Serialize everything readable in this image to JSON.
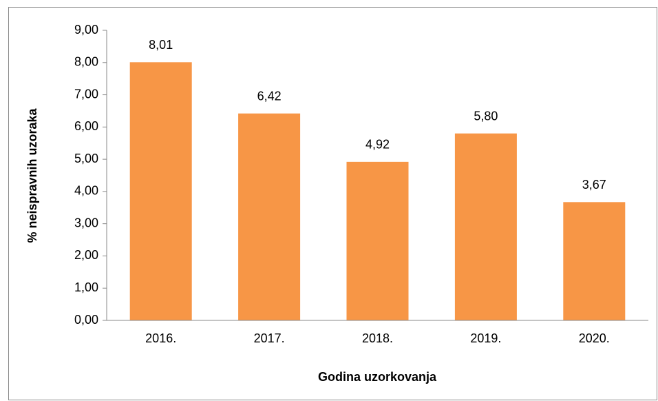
{
  "chart_data": {
    "type": "bar",
    "categories": [
      "2016.",
      "2017.",
      "2018.",
      "2019.",
      "2020."
    ],
    "values": [
      8.01,
      6.42,
      4.92,
      5.8,
      3.67
    ],
    "value_labels": [
      "8,01",
      "6,42",
      "4,92",
      "5,80",
      "3,67"
    ],
    "color": "#f79646",
    "x_label": "Godina uzorkovanja",
    "y_label": "% neispravnih uzoraka",
    "ylim": [
      0,
      9
    ],
    "yticks": [
      {
        "value": 0,
        "label": "0,00"
      },
      {
        "value": 1,
        "label": "1,00"
      },
      {
        "value": 2,
        "label": "2,00"
      },
      {
        "value": 3,
        "label": "3,00"
      },
      {
        "value": 4,
        "label": "4,00"
      },
      {
        "value": 5,
        "label": "5,00"
      },
      {
        "value": 6,
        "label": "6,00"
      },
      {
        "value": 7,
        "label": "7,00"
      },
      {
        "value": 8,
        "label": "8,00"
      },
      {
        "value": 9,
        "label": "9,00"
      }
    ],
    "grid": false
  }
}
